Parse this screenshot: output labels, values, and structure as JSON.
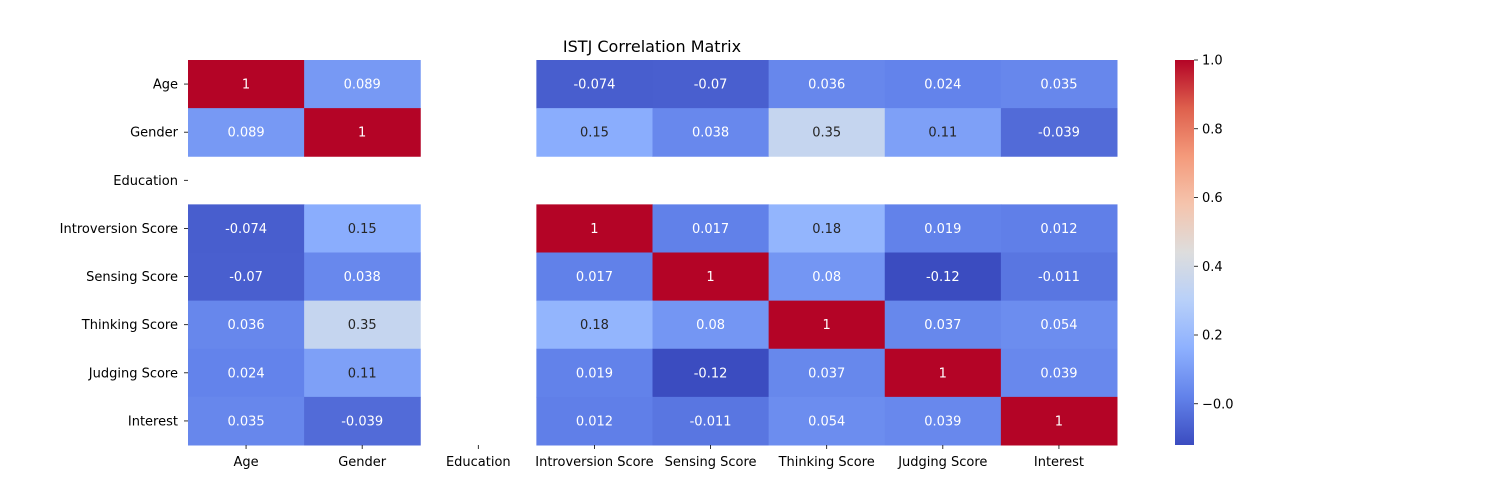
{
  "chart_data": {
    "type": "heatmap",
    "title": "ISTJ Correlation Matrix",
    "x_categories": [
      "Age",
      "Gender",
      "Education",
      "Introversion Score",
      "Sensing Score",
      "Thinking Score",
      "Judging Score",
      "Interest"
    ],
    "y_categories": [
      "Age",
      "Gender",
      "Education",
      "Introversion Score",
      "Sensing Score",
      "Thinking Score",
      "Judging Score",
      "Interest"
    ],
    "values": [
      [
        1,
        0.089,
        null,
        -0.074,
        -0.07,
        0.036,
        0.024,
        0.035
      ],
      [
        0.089,
        1,
        null,
        0.15,
        0.038,
        0.35,
        0.11,
        -0.039
      ],
      [
        null,
        null,
        null,
        null,
        null,
        null,
        null,
        null
      ],
      [
        -0.074,
        0.15,
        null,
        1,
        0.017,
        0.18,
        0.019,
        0.012
      ],
      [
        -0.07,
        0.038,
        null,
        0.017,
        1,
        0.08,
        -0.12,
        -0.011
      ],
      [
        0.036,
        0.35,
        null,
        0.18,
        0.08,
        1,
        0.037,
        0.054
      ],
      [
        0.024,
        0.11,
        null,
        0.019,
        -0.12,
        0.037,
        1,
        0.039
      ],
      [
        0.035,
        -0.039,
        null,
        0.012,
        -0.011,
        0.054,
        0.039,
        1
      ]
    ],
    "labels": [
      [
        "1",
        "0.089",
        "",
        "-0.074",
        "-0.07",
        "0.036",
        "0.024",
        "0.035"
      ],
      [
        "0.089",
        "1",
        "",
        "0.15",
        "0.038",
        "0.35",
        "0.11",
        "-0.039"
      ],
      [
        "",
        "",
        "",
        "",
        "",
        "",
        "",
        ""
      ],
      [
        "-0.074",
        "0.15",
        "",
        "1",
        "0.017",
        "0.18",
        "0.019",
        "0.012"
      ],
      [
        "-0.07",
        "0.038",
        "",
        "0.017",
        "1",
        "0.08",
        "-0.12",
        "-0.011"
      ],
      [
        "0.036",
        "0.35",
        "",
        "0.18",
        "0.08",
        "1",
        "0.037",
        "0.054"
      ],
      [
        "0.024",
        "0.11",
        "",
        "0.019",
        "-0.12",
        "0.037",
        "1",
        "0.039"
      ],
      [
        "0.035",
        "-0.039",
        "",
        "0.012",
        "-0.011",
        "0.054",
        "0.039",
        "1"
      ]
    ],
    "colorscale": "coolwarm",
    "vmin": -0.12,
    "vmax": 1.0,
    "colorbar_ticks": [
      -0.0,
      0.2,
      0.4,
      0.6,
      0.8,
      1.0
    ],
    "colorbar_tick_labels": [
      "−0.0",
      "0.2",
      "0.4",
      "0.6",
      "0.8",
      "1.0"
    ],
    "grid": false,
    "legend": "colorbar-right"
  }
}
